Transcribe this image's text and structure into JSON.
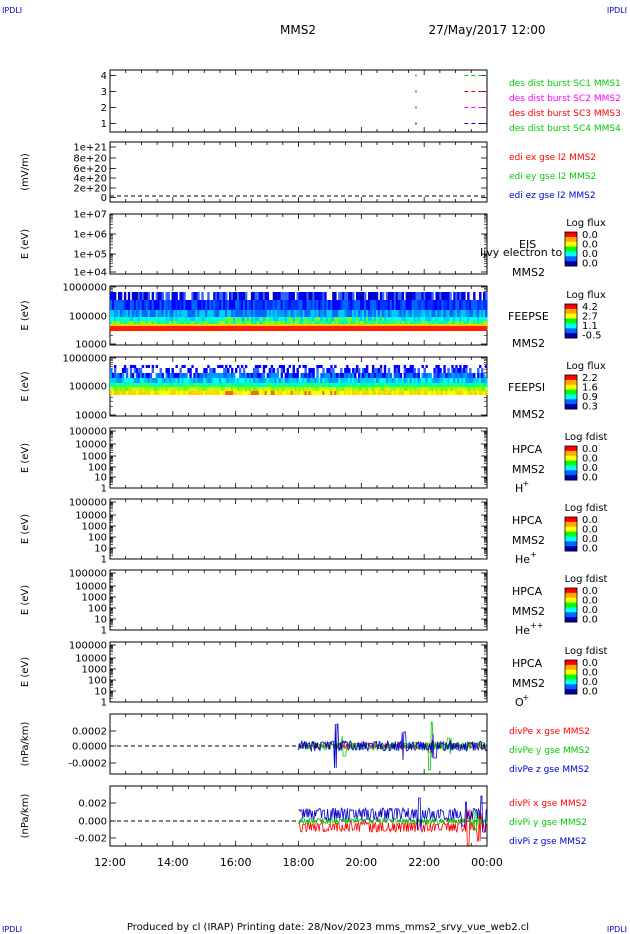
{
  "header": {
    "corner_tl": "IPDLI",
    "corner_tr": "IPDLI",
    "corner_bl": "IPDLI",
    "corner_br": "IPDLI",
    "spacecraft": "MMS2",
    "datetime": "27/May/2017 12:00"
  },
  "footer": {
    "text": "Produced by cl (IRAP)   Printing date: 28/Nov/2023   mms_mms2_srvy_vue_web2.cl"
  },
  "colors": {
    "red": "#ff0000",
    "green": "#00cc00",
    "blue": "#0000cc",
    "magenta": "#ff00ff",
    "dark_blue": "#0000ff"
  },
  "chart_data": [
    {
      "type": "line",
      "id": "burst",
      "ytick_labels": [
        "4",
        "3",
        "2",
        "1"
      ],
      "series": [
        {
          "name": "des dist burst SC1 MMS1",
          "color": "#00cc00"
        },
        {
          "name": "des dist burst SC2 MMS2",
          "color": "#ff00ff"
        },
        {
          "name": "des dist burst SC3 MMS3",
          "color": "#ff0000"
        },
        {
          "name": "des dist burst SC4 MMS4",
          "color": "#00cc00"
        }
      ]
    },
    {
      "type": "line",
      "id": "edi",
      "ylabel": "(mV/m)",
      "ytick_labels": [
        "1e+21",
        "8e+20",
        "6e+20",
        "4e+20",
        "2e+20",
        "0"
      ],
      "series": [
        {
          "name": "edi ex gse l2 MMS2",
          "color": "#ff0000"
        },
        {
          "name": "edi ey gse l2 MMS2",
          "color": "#00cc00"
        },
        {
          "name": "edi ez gse l2 MMS2",
          "color": "#0000cc"
        }
      ]
    },
    {
      "type": "heatmap",
      "id": "eis",
      "ylabel": "E (eV)",
      "ytick_labels": [
        "1e+07",
        "1e+06",
        "1e+05",
        "1e+04"
      ],
      "instrument": "EIS",
      "subtitle": "Ijvy electron to",
      "spacecraft": "MMS2",
      "cbar_title": "Log flux",
      "cbar_labels": [
        "0.0",
        "0.0",
        "0.0",
        "0.0"
      ]
    },
    {
      "type": "heatmap",
      "id": "feepse",
      "ylabel": "E (eV)",
      "ytick_labels": [
        "1000000",
        "100000",
        "10000"
      ],
      "instrument": "FEEPSE",
      "spacecraft": "MMS2",
      "cbar_title": "Log flux",
      "cbar_labels": [
        "4.2",
        "2.7",
        "1.1",
        "-0.5"
      ]
    },
    {
      "type": "heatmap",
      "id": "feepsi",
      "ylabel": "E (eV)",
      "ytick_labels": [
        "1000000",
        "100000",
        "10000"
      ],
      "instrument": "FEEPSI",
      "spacecraft": "MMS2",
      "cbar_title": "Log flux",
      "cbar_labels": [
        "2.2",
        "1.6",
        "0.9",
        "0.3"
      ]
    },
    {
      "type": "heatmap",
      "id": "hpca_h",
      "ylabel": "E (eV)",
      "ytick_labels": [
        "100000",
        "10000",
        "1000",
        "100",
        "10",
        "1"
      ],
      "instrument": "HPCA",
      "spacecraft": "MMS2",
      "species": "H",
      "species_sup": "+",
      "cbar_title": "Log fdist",
      "cbar_labels": [
        "0.0",
        "0.0",
        "0.0",
        "0.0"
      ]
    },
    {
      "type": "heatmap",
      "id": "hpca_he1",
      "ylabel": "E (eV)",
      "ytick_labels": [
        "100000",
        "10000",
        "1000",
        "100",
        "10",
        "1"
      ],
      "instrument": "HPCA",
      "spacecraft": "MMS2",
      "species": "He",
      "species_sup": "+",
      "cbar_title": "Log fdist",
      "cbar_labels": [
        "0.0",
        "0.0",
        "0.0",
        "0.0"
      ]
    },
    {
      "type": "heatmap",
      "id": "hpca_he2",
      "ylabel": "E (eV)",
      "ytick_labels": [
        "100000",
        "10000",
        "1000",
        "100",
        "10",
        "1"
      ],
      "instrument": "HPCA",
      "spacecraft": "MMS2",
      "species": "He",
      "species_sup": "++",
      "cbar_title": "Log fdist",
      "cbar_labels": [
        "0.0",
        "0.0",
        "0.0",
        "0.0"
      ]
    },
    {
      "type": "heatmap",
      "id": "hpca_o",
      "ylabel": "E (eV)",
      "ytick_labels": [
        "100000",
        "10000",
        "1000",
        "100",
        "10",
        "1"
      ],
      "instrument": "HPCA",
      "spacecraft": "MMS2",
      "species": "O",
      "species_sup": "+",
      "cbar_title": "Log fdist",
      "cbar_labels": [
        "0.0",
        "0.0",
        "0.0",
        "0.0"
      ]
    },
    {
      "type": "line",
      "id": "divpe",
      "ylabel": "(nPa/km)",
      "ytick_labels": [
        "0.0002",
        "0.0000",
        "-0.0002"
      ],
      "series": [
        {
          "name": "divPe x gse MMS2",
          "color": "#ff0000"
        },
        {
          "name": "divPe y gse MMS2",
          "color": "#00cc00"
        },
        {
          "name": "divPe z gse MMS2",
          "color": "#0000cc"
        }
      ]
    },
    {
      "type": "line",
      "id": "divpi",
      "ylabel": "(nPa/km)",
      "ytick_labels": [
        "0.002",
        "0.000",
        "-0.002"
      ],
      "series": [
        {
          "name": "divPi x gse MMS2",
          "color": "#ff0000"
        },
        {
          "name": "divPi y gse MMS2",
          "color": "#00cc00"
        },
        {
          "name": "divPi z gse MMS2",
          "color": "#0000cc"
        }
      ]
    }
  ],
  "xaxis": {
    "tick_labels": [
      "12:00",
      "14:00",
      "16:00",
      "18:00",
      "20:00",
      "22:00",
      "00:00"
    ]
  }
}
